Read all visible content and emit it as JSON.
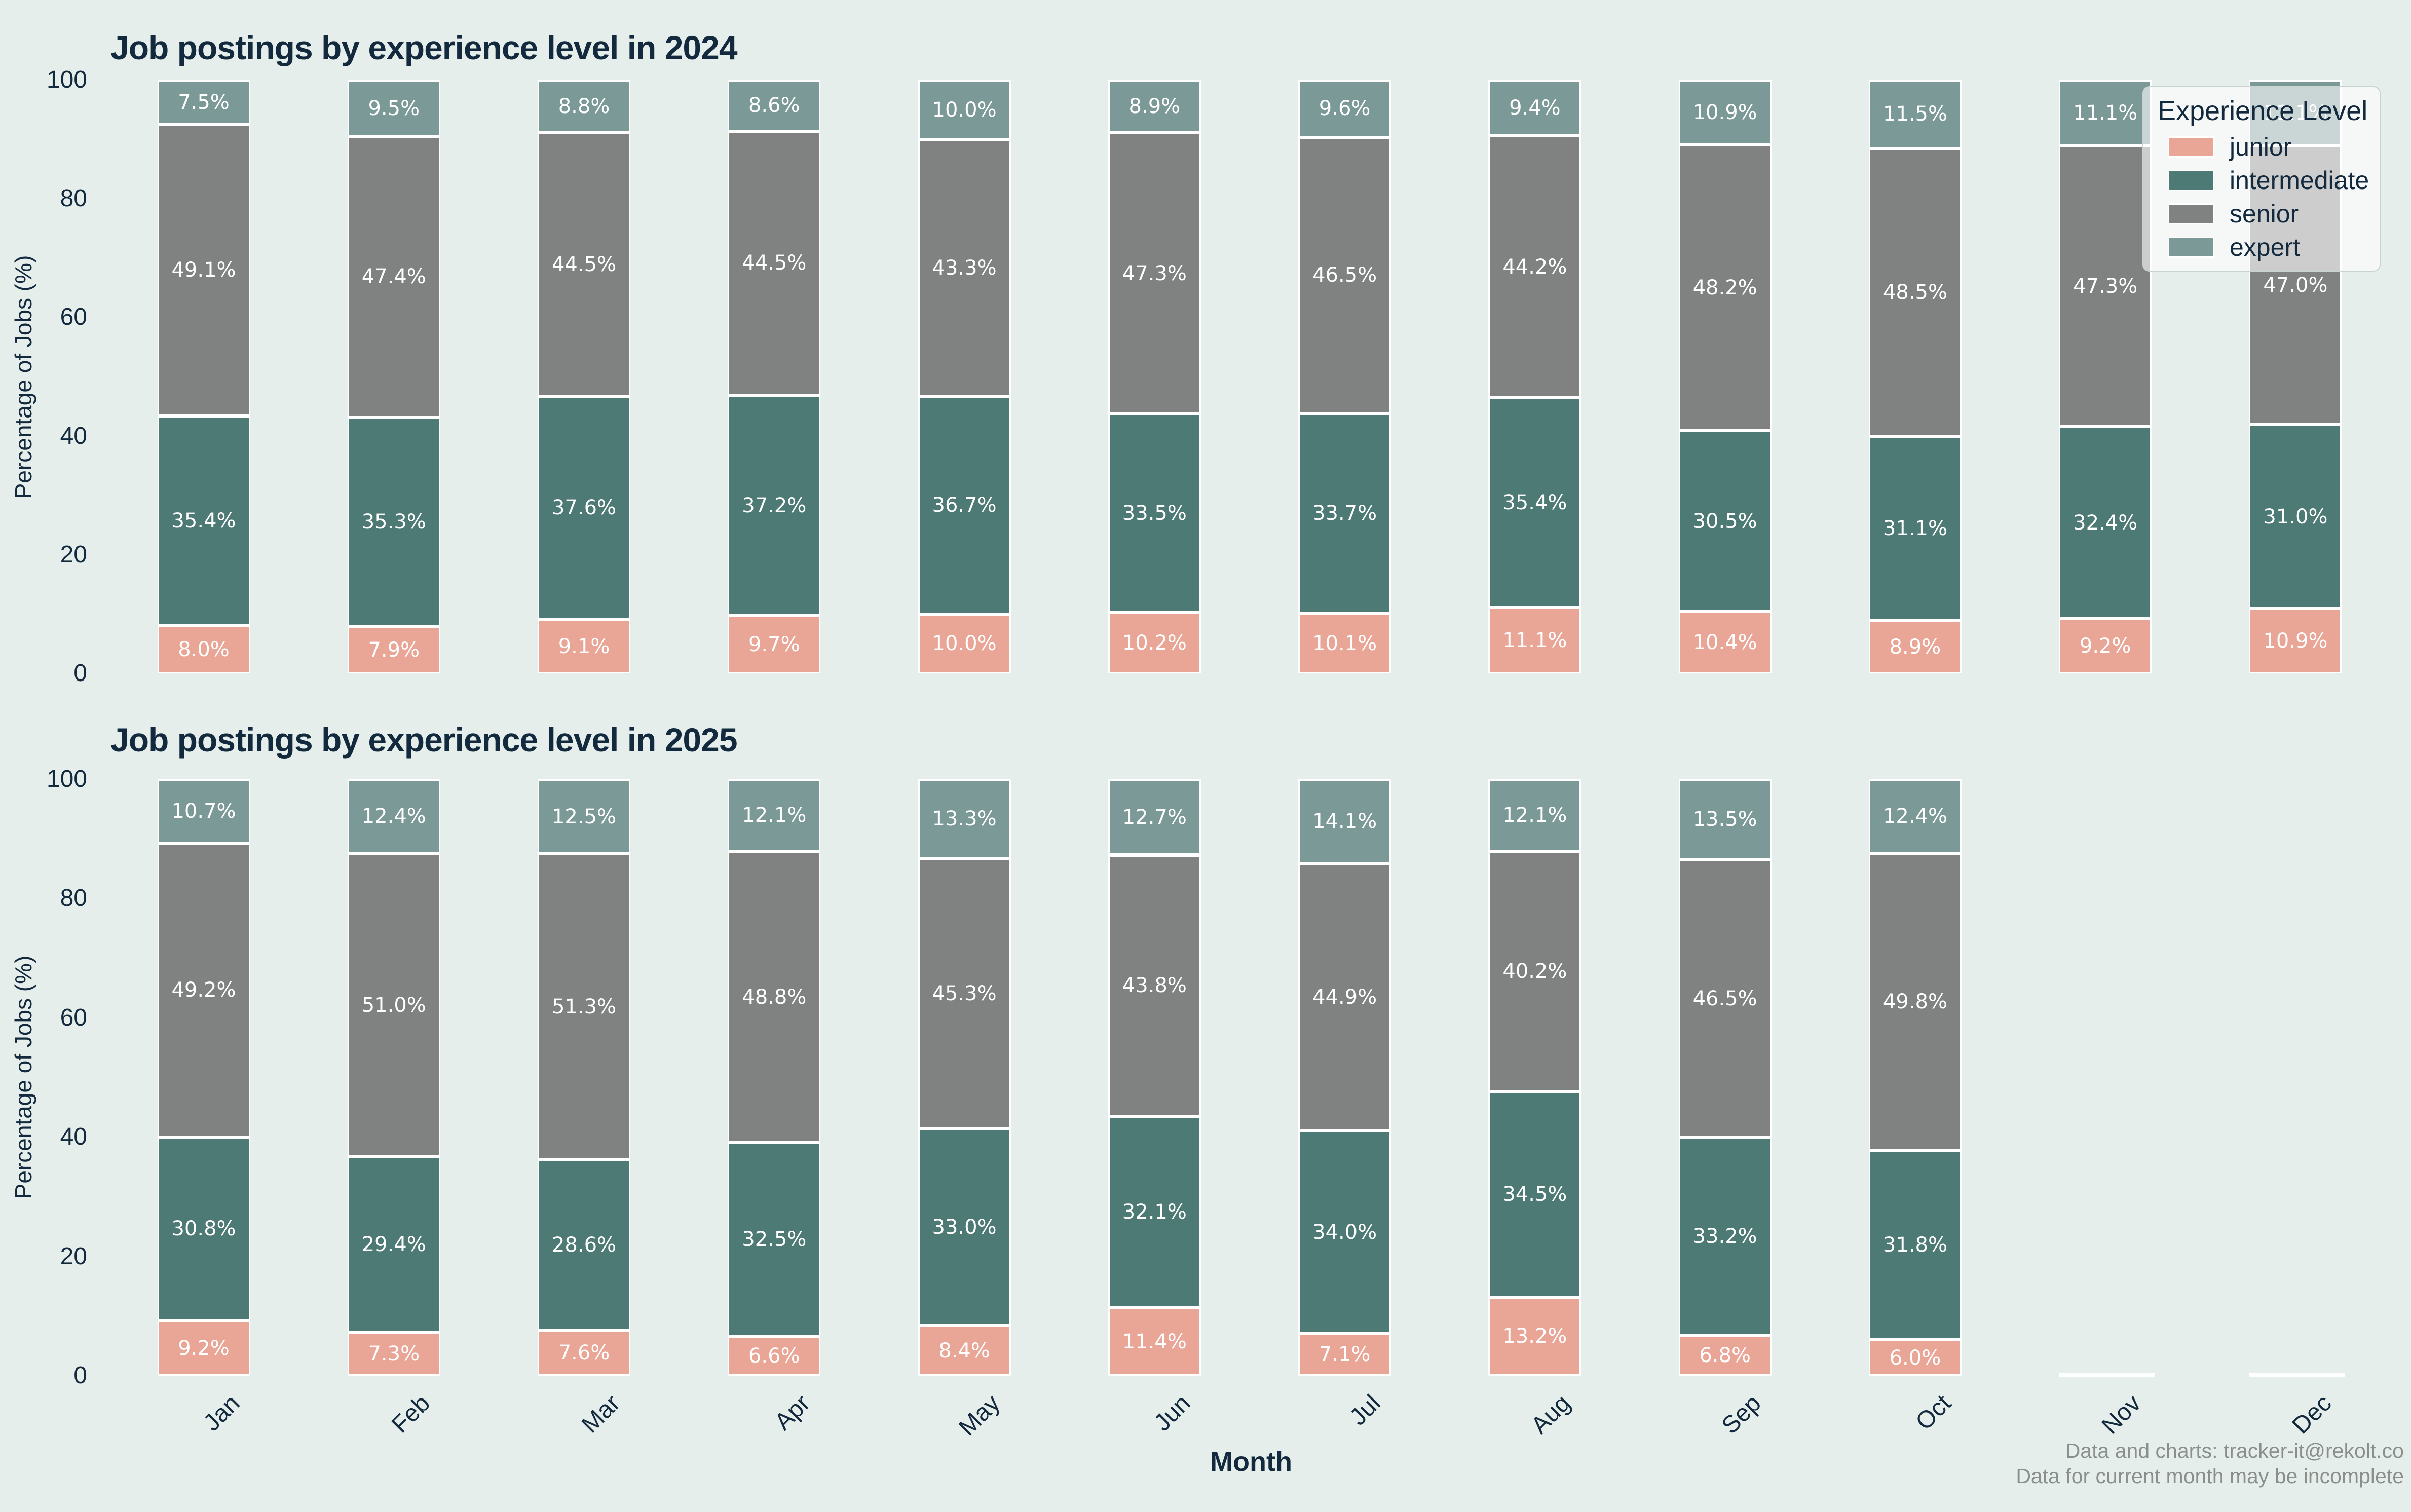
{
  "page": {
    "background": "#E5EEEA"
  },
  "colors": {
    "junior": "#E9A596",
    "intermediate": "#4D7A74",
    "senior": "#7F8281",
    "expert": "#7B9A97",
    "title_text": "#132A3E",
    "footer_text": "#8A8F8C"
  },
  "chart_data": [
    {
      "type": "bar",
      "stacked": true,
      "title": "Job postings by experience level in 2024",
      "ylabel": "Percentage of Jobs (%)",
      "ylim": [
        0,
        100
      ],
      "yticks": [
        0,
        20,
        40,
        60,
        80,
        100
      ],
      "categories": [
        "Jan",
        "Feb",
        "Mar",
        "Apr",
        "May",
        "Jun",
        "Jul",
        "Aug",
        "Sep",
        "Oct",
        "Nov",
        "Dec"
      ],
      "series": [
        {
          "name": "junior",
          "values": [
            8.0,
            7.9,
            9.1,
            9.7,
            10.0,
            10.2,
            10.1,
            11.1,
            10.4,
            8.9,
            9.2,
            10.9
          ]
        },
        {
          "name": "intermediate",
          "values": [
            35.4,
            35.3,
            37.6,
            37.2,
            36.7,
            33.5,
            33.7,
            35.4,
            30.5,
            31.1,
            32.4,
            31.0
          ]
        },
        {
          "name": "senior",
          "values": [
            49.1,
            47.4,
            44.5,
            44.5,
            43.3,
            47.3,
            46.5,
            44.2,
            48.2,
            48.5,
            47.3,
            47.0
          ]
        },
        {
          "name": "expert",
          "values": [
            7.5,
            9.5,
            8.8,
            8.6,
            10.0,
            8.9,
            9.6,
            9.4,
            10.9,
            11.5,
            11.1,
            11.1
          ]
        }
      ]
    },
    {
      "type": "bar",
      "stacked": true,
      "title": "Job postings by experience level in 2025",
      "ylabel": "Percentage of Jobs (%)",
      "ylim": [
        0,
        100
      ],
      "yticks": [
        0,
        20,
        40,
        60,
        80,
        100
      ],
      "categories": [
        "Jan",
        "Feb",
        "Mar",
        "Apr",
        "May",
        "Jun",
        "Jul",
        "Aug",
        "Sep",
        "Oct",
        "Nov",
        "Dec"
      ],
      "series": [
        {
          "name": "junior",
          "values": [
            9.2,
            7.3,
            7.6,
            6.6,
            8.4,
            11.4,
            7.1,
            13.2,
            6.8,
            6.0,
            null,
            null
          ]
        },
        {
          "name": "intermediate",
          "values": [
            30.8,
            29.4,
            28.6,
            32.5,
            33.0,
            32.1,
            34.0,
            34.5,
            33.2,
            31.8,
            null,
            null
          ]
        },
        {
          "name": "senior",
          "values": [
            49.2,
            51.0,
            51.3,
            48.8,
            45.3,
            43.8,
            44.9,
            40.2,
            46.5,
            49.8,
            null,
            null
          ]
        },
        {
          "name": "expert",
          "values": [
            10.7,
            12.4,
            12.5,
            12.1,
            13.3,
            12.7,
            14.1,
            12.1,
            13.5,
            12.4,
            null,
            null
          ]
        }
      ]
    }
  ],
  "legend": {
    "title": "Experience Level",
    "entries": [
      {
        "label": "junior",
        "color": "#E9A596"
      },
      {
        "label": "intermediate",
        "color": "#4D7A74"
      },
      {
        "label": "senior",
        "color": "#7F8281"
      },
      {
        "label": "expert",
        "color": "#7B9A97"
      }
    ]
  },
  "xaxis": {
    "label": "Month"
  },
  "footer": {
    "line1": "Data and charts: tracker-it@rekolt.co",
    "line2": "Data for current month may be incomplete"
  }
}
